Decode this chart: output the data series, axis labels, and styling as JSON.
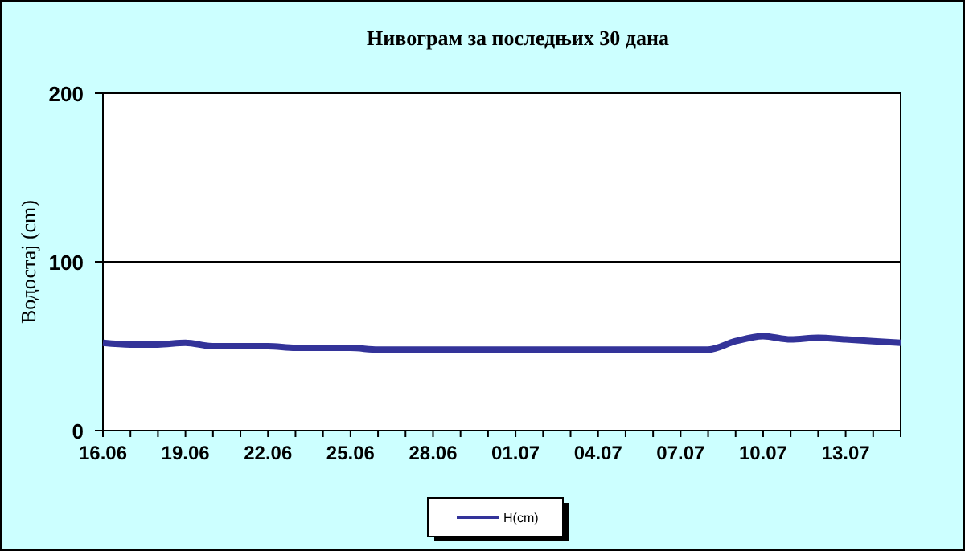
{
  "chart_data": {
    "type": "line",
    "title": "Нивограм за последњих 30 дана",
    "ylabel": "Водостај (cm)",
    "categories": [
      "16.06",
      null,
      null,
      "19.06",
      null,
      null,
      "22.06",
      null,
      null,
      "25.06",
      null,
      null,
      "28.06",
      null,
      null,
      "01.07",
      null,
      null,
      "04.07",
      null,
      null,
      "07.07",
      null,
      null,
      "10.07",
      null,
      null,
      "13.07",
      null,
      null
    ],
    "series": [
      {
        "name": "H(cm)",
        "color": "#333399",
        "values": [
          52,
          51,
          51,
          52,
          50,
          50,
          50,
          49,
          49,
          49,
          48,
          48,
          48,
          48,
          48,
          48,
          48,
          48,
          48,
          48,
          48,
          48,
          48,
          53,
          56,
          54,
          55,
          54,
          53,
          52
        ]
      }
    ],
    "ylim": [
      0,
      200
    ],
    "yticks": [
      0,
      100,
      200
    ],
    "grid": "y",
    "legend": "bottom",
    "marker": "none",
    "line_style": "solid"
  }
}
